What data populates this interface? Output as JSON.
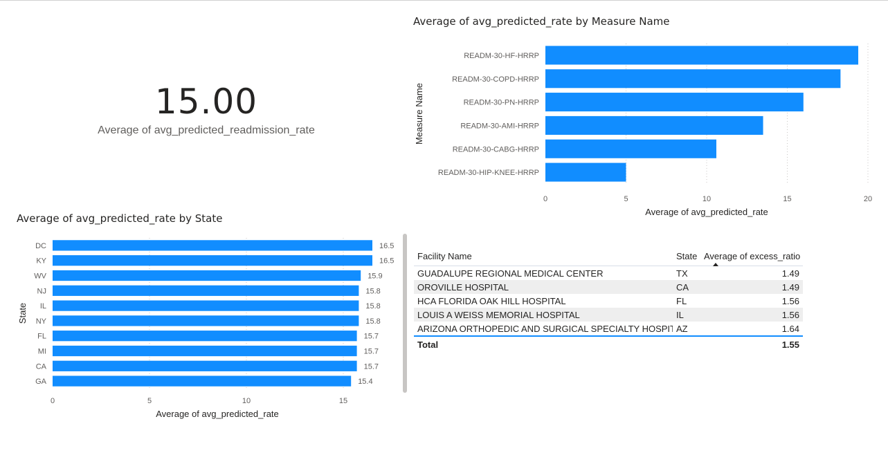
{
  "kpi": {
    "value": "15.00",
    "label": "Average of avg_predicted_readmission_rate"
  },
  "colors": {
    "bar": "#118dff",
    "gridline": "#c8c6c4",
    "axis_text": "#605e5c",
    "title_text": "#252423",
    "table_accent": "#118dff",
    "row_stripe": "#eeeeee"
  },
  "measure_chart": {
    "title": "Average of avg_predicted_rate by Measure Name"
  },
  "state_chart": {
    "title": "Average of avg_predicted_rate by State"
  },
  "table": {
    "columns": [
      "Facility Name",
      "State",
      "Average of excess_ratio"
    ],
    "sorted_column": "Average of excess_ratio",
    "sort_direction": "ascending",
    "rows": [
      {
        "facility": "GUADALUPE REGIONAL MEDICAL CENTER",
        "state": "TX",
        "ratio": "1.49"
      },
      {
        "facility": "OROVILLE HOSPITAL",
        "state": "CA",
        "ratio": "1.49"
      },
      {
        "facility": "HCA FLORIDA OAK HILL HOSPITAL",
        "state": "FL",
        "ratio": "1.56"
      },
      {
        "facility": "LOUIS A WEISS MEMORIAL HOSPITAL",
        "state": "IL",
        "ratio": "1.56"
      },
      {
        "facility": "ARIZONA ORTHOPEDIC AND SURGICAL SPECIALTY HOSPITAL",
        "state": "AZ",
        "ratio": "1.64"
      }
    ],
    "total": {
      "label": "Total",
      "ratio": "1.55"
    }
  },
  "chart_data": [
    {
      "type": "bar",
      "orientation": "horizontal",
      "title": "Average of avg_predicted_rate by Measure Name",
      "xlabel": "Average of avg_predicted_rate",
      "ylabel": "Measure Name",
      "categories": [
        "READM-30-HF-HRRP",
        "READM-30-COPD-HRRP",
        "READM-30-PN-HRRP",
        "READM-30-AMI-HRRP",
        "READM-30-CABG-HRRP",
        "READM-30-HIP-KNEE-HRRP"
      ],
      "values": [
        19.4,
        18.3,
        16.0,
        13.5,
        10.6,
        5.0
      ],
      "xlim": [
        0,
        20
      ],
      "xticks": [
        0,
        5,
        10,
        15,
        20
      ],
      "grid": true,
      "data_labels": false
    },
    {
      "type": "bar",
      "orientation": "horizontal",
      "title": "Average of avg_predicted_rate by State",
      "xlabel": "Average of avg_predicted_rate",
      "ylabel": "State",
      "categories": [
        "DC",
        "KY",
        "WV",
        "NJ",
        "IL",
        "NY",
        "FL",
        "MI",
        "CA",
        "GA"
      ],
      "values": [
        16.5,
        16.5,
        15.9,
        15.8,
        15.8,
        15.8,
        15.7,
        15.7,
        15.7,
        15.4
      ],
      "xlim": [
        0,
        17
      ],
      "xticks": [
        0,
        5,
        10,
        15
      ],
      "grid": true,
      "data_labels": true
    }
  ]
}
